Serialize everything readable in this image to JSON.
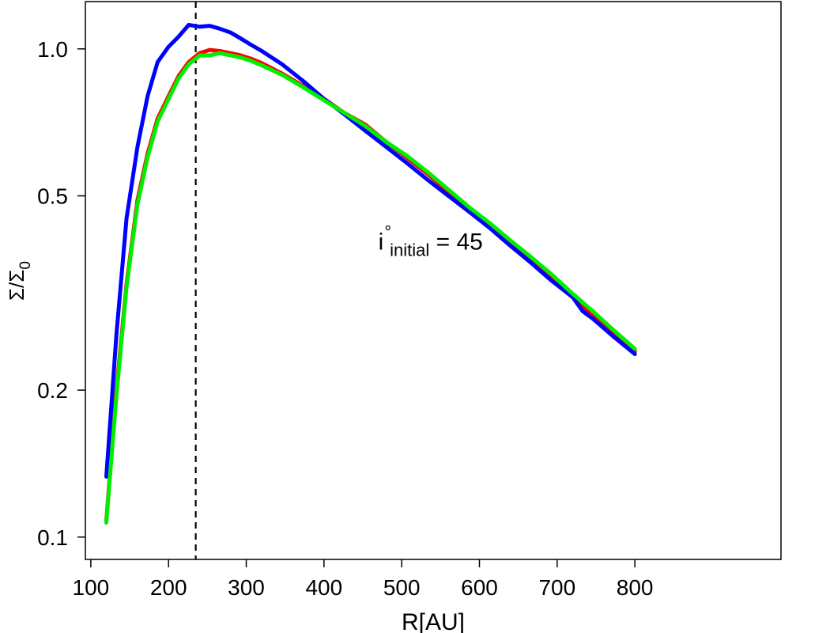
{
  "chart_data": {
    "type": "line",
    "xlabel": "R[AU]",
    "ylabel": "Σ/Σ0",
    "ylabel_base": "Σ/Σ",
    "ylabel_sub": "0",
    "yscale": "log",
    "xlim": [
      93,
      988
    ],
    "ylim": [
      0.09,
      1.25
    ],
    "xticks": [
      100,
      200,
      300,
      400,
      500,
      600,
      700,
      800
    ],
    "yticks": [
      0.1,
      0.2,
      0.5,
      1.0
    ],
    "xtick_labels": [
      "100",
      "200",
      "300",
      "400",
      "500",
      "600",
      "700",
      "800"
    ],
    "ytick_labels": [
      "0.1",
      "0.2",
      "0.5",
      "1.0"
    ],
    "grid": false,
    "legend": "none",
    "annotation": {
      "base": "i",
      "sup": "°",
      "sub": "initial",
      "rest": " = 45",
      "x": 470,
      "y": 0.4
    },
    "vline": {
      "x": 235,
      "style": "dashed",
      "color": "#000000"
    },
    "series": [
      {
        "color": "#ff0000",
        "x": [
          120,
          133,
          146,
          160,
          173,
          186,
          200,
          213,
          226,
          240,
          253,
          266,
          280,
          293,
          306,
          320,
          346,
          373,
          400,
          426,
          453,
          480,
          506,
          533,
          560,
          586,
          613,
          640,
          666,
          693,
          720,
          746,
          773,
          800
        ],
        "y": [
          0.108,
          0.2,
          0.33,
          0.49,
          0.61,
          0.72,
          0.8,
          0.88,
          0.94,
          0.98,
          0.995,
          0.99,
          0.98,
          0.97,
          0.955,
          0.935,
          0.89,
          0.84,
          0.79,
          0.74,
          0.7,
          0.645,
          0.6,
          0.555,
          0.51,
          0.47,
          0.435,
          0.4,
          0.37,
          0.34,
          0.31,
          0.285,
          0.262,
          0.24
        ]
      },
      {
        "color": "#0000ff",
        "x": [
          120,
          133,
          146,
          160,
          173,
          186,
          200,
          213,
          226,
          240,
          253,
          266,
          280,
          293,
          306,
          320,
          346,
          373,
          400,
          426,
          453,
          480,
          506,
          533,
          560,
          586,
          613,
          640,
          666,
          693,
          720,
          733,
          746,
          773,
          800
        ],
        "y": [
          0.133,
          0.26,
          0.45,
          0.63,
          0.8,
          0.94,
          1.01,
          1.06,
          1.12,
          1.11,
          1.115,
          1.1,
          1.08,
          1.05,
          1.02,
          0.99,
          0.93,
          0.86,
          0.79,
          0.735,
          0.68,
          0.63,
          0.585,
          0.54,
          0.5,
          0.465,
          0.43,
          0.395,
          0.365,
          0.335,
          0.31,
          0.29,
          0.28,
          0.257,
          0.237
        ]
      },
      {
        "color": "#00ee00",
        "x": [
          120,
          133,
          146,
          160,
          173,
          186,
          200,
          213,
          226,
          240,
          253,
          266,
          280,
          293,
          306,
          320,
          346,
          373,
          400,
          426,
          453,
          480,
          506,
          533,
          560,
          586,
          613,
          640,
          666,
          693,
          720,
          746,
          773,
          800
        ],
        "y": [
          0.107,
          0.195,
          0.325,
          0.48,
          0.6,
          0.71,
          0.79,
          0.87,
          0.93,
          0.97,
          0.97,
          0.98,
          0.97,
          0.96,
          0.945,
          0.925,
          0.885,
          0.835,
          0.785,
          0.74,
          0.695,
          0.645,
          0.605,
          0.56,
          0.515,
          0.475,
          0.44,
          0.405,
          0.375,
          0.345,
          0.315,
          0.29,
          0.265,
          0.243
        ]
      }
    ]
  }
}
